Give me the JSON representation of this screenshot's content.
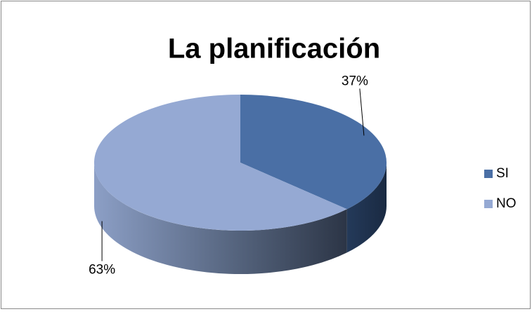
{
  "chart_data": {
    "type": "pie",
    "title": "La planificación",
    "categories": [
      "SI",
      "NO"
    ],
    "values": [
      37,
      63
    ],
    "value_labels": [
      "37%",
      "63%"
    ],
    "colors": [
      "#4a6fa5",
      "#95a9d3"
    ],
    "legend": "right"
  }
}
